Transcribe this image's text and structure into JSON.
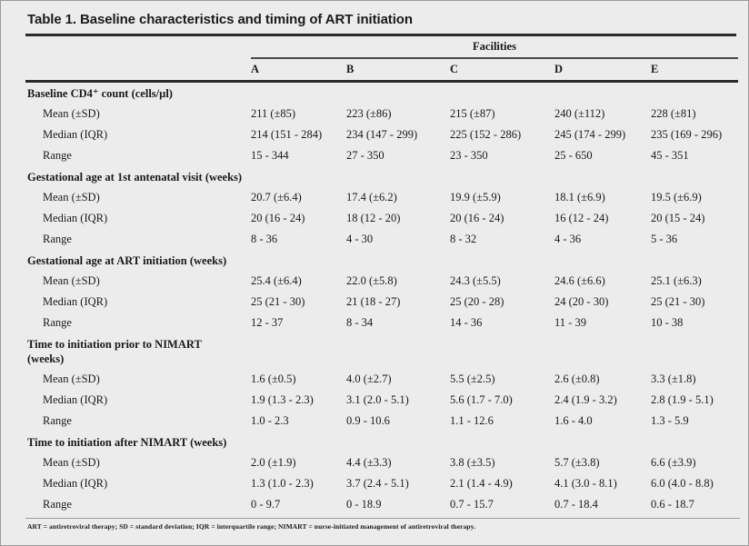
{
  "title": "Table 1. Baseline characteristics and timing of ART initiation",
  "header": {
    "group_label": "Facilities",
    "columns": [
      "A",
      "B",
      "C",
      "D",
      "E"
    ]
  },
  "sections": [
    {
      "header": "Baseline CD4⁺ count (cells/µl)",
      "rows": [
        {
          "label": "Mean (±SD)",
          "values": [
            "211 (±85)",
            "223 (±86)",
            "215 (±87)",
            "240 (±112)",
            "228 (±81)"
          ]
        },
        {
          "label": "Median (IQR)",
          "values": [
            "214 (151 - 284)",
            "234 (147 - 299)",
            "225 (152 - 286)",
            "245 (174 - 299)",
            "235 (169 - 296)"
          ]
        },
        {
          "label": "Range",
          "values": [
            "15 - 344",
            "27 - 350",
            "23 - 350",
            "25 - 650",
            "45 - 351"
          ]
        }
      ]
    },
    {
      "header": "Gestational age at 1st antenatal visit (weeks)",
      "rows": [
        {
          "label": "Mean (±SD)",
          "values": [
            "20.7 (±6.4)",
            "17.4 (±6.2)",
            "19.9 (±5.9)",
            "18.1 (±6.9)",
            "19.5 (±6.9)"
          ]
        },
        {
          "label": "Median (IQR)",
          "values": [
            "20 (16 - 24)",
            "18 (12 - 20)",
            "20 (16 - 24)",
            "16 (12 - 24)",
            "20 (15 - 24)"
          ]
        },
        {
          "label": "Range",
          "values": [
            "8 - 36",
            "4 - 30",
            "8 - 32",
            "4 - 36",
            "5 - 36"
          ]
        }
      ]
    },
    {
      "header": "Gestational age at ART initiation (weeks)",
      "rows": [
        {
          "label": "Mean (±SD)",
          "values": [
            "25.4 (±6.4)",
            "22.0 (±5.8)",
            "24.3 (±5.5)",
            "24.6 (±6.6)",
            "25.1 (±6.3)"
          ]
        },
        {
          "label": "Median (IQR)",
          "values": [
            "25 (21 - 30)",
            "21 (18 - 27)",
            "25 (20 - 28)",
            "24 (20 - 30)",
            "25 (21 - 30)"
          ]
        },
        {
          "label": "Range",
          "values": [
            "12 - 37",
            "8 - 34",
            "14 - 36",
            "11 - 39",
            "10 - 38"
          ]
        }
      ]
    },
    {
      "header": "Time to initiation prior to NIMART\n(weeks)",
      "rows": [
        {
          "label": "Mean (±SD)",
          "values": [
            "1.6 (±0.5)",
            "4.0 (±2.7)",
            "5.5 (±2.5)",
            "2.6 (±0.8)",
            "3.3 (±1.8)"
          ]
        },
        {
          "label": "Median (IQR)",
          "values": [
            "1.9 (1.3 - 2.3)",
            "3.1 (2.0 - 5.1)",
            "5.6 (1.7 - 7.0)",
            "2.4 (1.9 - 3.2)",
            "2.8 (1.9 - 5.1)"
          ]
        },
        {
          "label": "Range",
          "values": [
            "1.0 - 2.3",
            "0.9 - 10.6",
            "1.1 - 12.6",
            "1.6 - 4.0",
            "1.3 - 5.9"
          ]
        }
      ]
    },
    {
      "header": "Time to initiation after NIMART (weeks)",
      "rows": [
        {
          "label": "Mean (±SD)",
          "values": [
            "2.0 (±1.9)",
            "4.4 (±3.3)",
            "3.8 (±3.5)",
            "5.7 (±3.8)",
            "6.6 (±3.9)"
          ]
        },
        {
          "label": "Median (IQR)",
          "values": [
            "1.3 (1.0 - 2.3)",
            "3.7 (2.4 - 5.1)",
            "2.1 (1.4 - 4.9)",
            "4.1 (3.0 - 8.1)",
            "6.0 (4.0 - 8.8)"
          ]
        },
        {
          "label": "Range",
          "values": [
            "0 - 9.7",
            "0 - 18.9",
            "0.7 - 15.7",
            "0.7 - 18.4",
            "0.6 - 18.7"
          ]
        }
      ]
    }
  ],
  "footnote": "ART = antiretroviral therapy; SD = standard deviation; IQR = interquartile range; NIMART = nurse-initiated management of antiretroviral therapy.",
  "colors": {
    "bg": "#ececec",
    "text": "#1a1a1a",
    "heavy": "#2b2b2b",
    "mid": "#4a4a4a",
    "light": "#9a9a9a"
  }
}
